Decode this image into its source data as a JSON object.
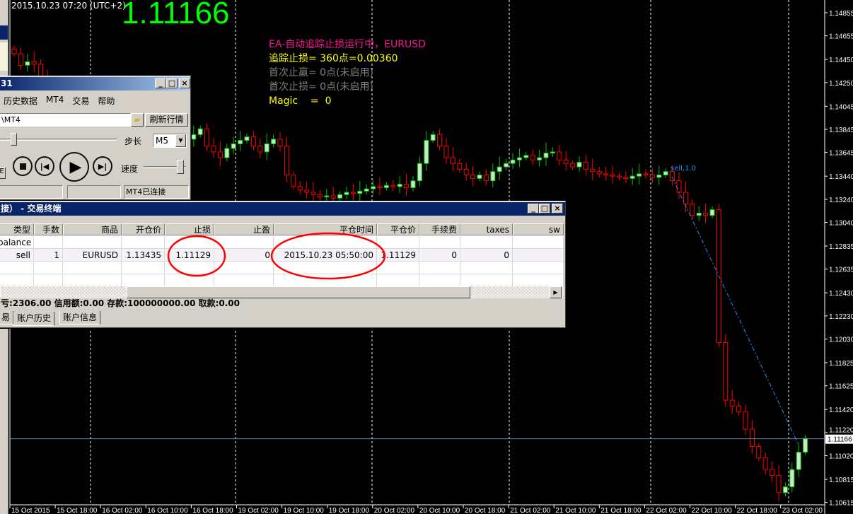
{
  "chart": {
    "datetime": "2015.10.23 07:20 (UTC+2)",
    "bid": "1.11166",
    "symbol_colors": {
      "bull_body": "#c8e6c8",
      "bull_line": "#00c000",
      "bear_line": "#ff0000",
      "grid": "#ffffff",
      "bid_line": "#6f8fb0",
      "order_line": "#1e90ff"
    },
    "order_label": "sell,1.0",
    "price_axis": [
      "1.14855",
      "1.14655",
      "1.14450",
      "1.14250",
      "1.14045",
      "1.13845",
      "1.13645",
      "1.13440",
      "1.13240",
      "1.13040",
      "1.12835",
      "1.12635",
      "1.12430",
      "1.12230",
      "1.12030",
      "1.11825",
      "1.11625",
      "1.11420",
      "1.11220",
      "1.11020",
      "1.10815",
      "1.10615"
    ],
    "time_axis": [
      "15 Oct 2015",
      "15 Oct 18:00",
      "16 Oct 02:00",
      "16 Oct 10:00",
      "16 Oct 18:00",
      "19 Oct 02:00",
      "19 Oct 10:00",
      "19 Oct 18:00",
      "20 Oct 02:00",
      "20 Oct 10:00",
      "20 Oct 18:00",
      "21 Oct 02:00",
      "21 Oct 10:00",
      "21 Oct 18:00",
      "22 Oct 02:00",
      "22 Oct 10:00",
      "22 Oct 18:00",
      "23 Oct 02:00"
    ],
    "closes": [
      1.145,
      1.144,
      1.1443,
      1.1441,
      1.143,
      1.142,
      1.1415,
      1.141,
      1.1405,
      1.14,
      1.1395,
      1.139,
      1.1392,
      1.1388,
      1.1385,
      1.138,
      1.1382,
      1.1378,
      1.1375,
      1.1372,
      1.137,
      1.1368,
      1.1372,
      1.1375,
      1.1378,
      1.1374,
      1.1376,
      1.138,
      1.1385,
      1.137,
      1.1365,
      1.136,
      1.1368,
      1.1372,
      1.1375,
      1.1378,
      1.137,
      1.1365,
      1.1372,
      1.1376,
      1.137,
      1.1345,
      1.1335,
      1.1332,
      1.133,
      1.1328,
      1.1326,
      1.1327,
      1.1325,
      1.1328,
      1.133,
      1.1329,
      1.1331,
      1.1333,
      1.1335,
      1.1334,
      1.1336,
      1.1335,
      1.1337,
      1.1334,
      1.134,
      1.1355,
      1.1375,
      1.138,
      1.137,
      1.136,
      1.1355,
      1.135,
      1.1345,
      1.1342,
      1.1345,
      1.134,
      1.1348,
      1.1352,
      1.1355,
      1.1358,
      1.136,
      1.1362,
      1.1358,
      1.136,
      1.1364,
      1.1365,
      1.1358,
      1.1355,
      1.1352,
      1.1356,
      1.135,
      1.1348,
      1.1346,
      1.1345,
      1.1344,
      1.1343,
      1.1342,
      1.1344,
      1.1346,
      1.1345,
      1.1343,
      1.1345,
      1.1348,
      1.134,
      1.133,
      1.132,
      1.131,
      1.1312,
      1.131,
      1.1315,
      1.12,
      1.115,
      1.1145,
      1.114,
      1.1125,
      1.111,
      1.11,
      1.109,
      1.1085,
      1.107,
      1.1075,
      1.109,
      1.1105,
      1.1117
    ]
  },
  "ea_panel": {
    "line1": "EA-自动追踪止损运行中，EURUSD",
    "line2": "追踪止损= 360点=0.00360",
    "line3": "首次止赢= 0点(未启用)",
    "line4": "首次止损= 0点(未启用)",
    "line5": "Magic    =  0",
    "colors": {
      "line1": "#ff1493",
      "line2": "#ffff00",
      "line3": "#808080",
      "line4": "#808080",
      "line5": "#ffff00"
    }
  },
  "tester": {
    "title": "31",
    "menu": [
      "历史数据",
      "MT4",
      "交易",
      "帮助"
    ],
    "path": "\\MT4",
    "refresh_label": "刷新行情",
    "step_label": "步长",
    "step_value": "M5",
    "speed_label": "速度",
    "status": "MT4已连接",
    "left_btn": "E"
  },
  "terminal": {
    "title": "接）  - 交易终端",
    "columns": [
      "类型",
      "手数",
      "商品",
      "开仓价",
      "止损",
      "止盈",
      "平仓时间",
      "平仓价",
      "手续费",
      "taxes",
      "sw"
    ],
    "rows": [
      [
        "balance",
        "",
        "",
        "",
        "",
        "",
        "",
        "",
        "",
        "",
        ""
      ],
      [
        "sell",
        "1",
        "EURUSD",
        "1.13435",
        "1.11129",
        "0",
        "2015.10.23 05:50:00",
        "1.11129",
        "0",
        "0",
        ""
      ]
    ],
    "summary": "亏:2306.00 信用额:0.00 存款:100000000.00 取款:0.00",
    "tabs": [
      "易",
      "账户历史",
      "账户信息"
    ],
    "active_tab": "账户历史"
  }
}
